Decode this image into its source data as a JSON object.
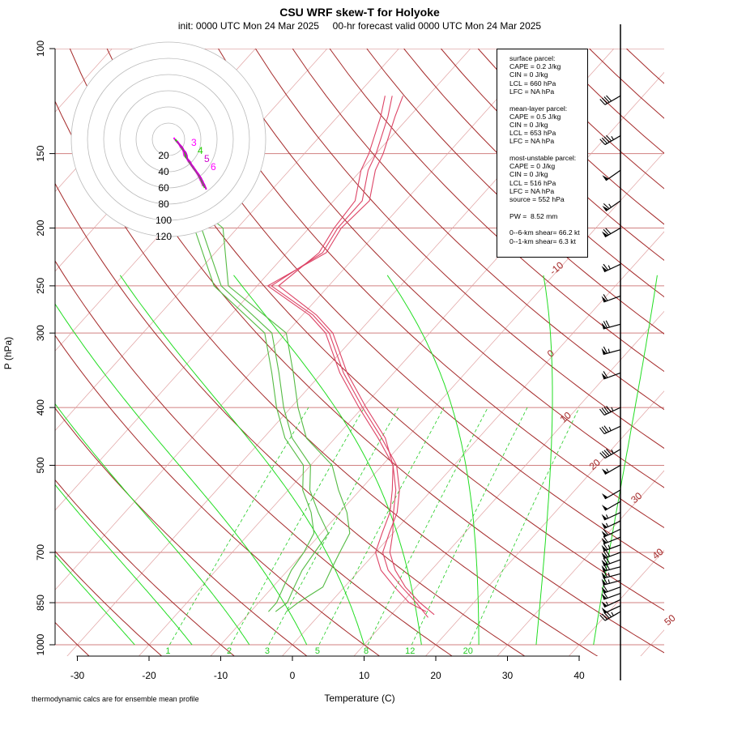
{
  "title": "CSU WRF skew-T for Holyoke",
  "subtitle": "init: 0000 UTC Mon 24 Mar 2025     00-hr forecast valid 0000 UTC Mon 24 Mar 2025",
  "footnote": "thermodynamic calcs are for ensemble mean profile",
  "info": {
    "surface": [
      "surface parcel:",
      "CAPE = 0.2 J/kg",
      "CIN = 0 J/kg",
      "LCL = 660 hPa",
      "LFC = NA hPa"
    ],
    "mean_layer": [
      "mean-layer parcel:",
      "CAPE = 0.5 J/kg",
      "CIN = 0 J/kg",
      "LCL = 653 hPa",
      "LFC = NA hPa"
    ],
    "most_unstable": [
      "most-unstable parcel:",
      "CAPE = 0 J/kg",
      "CIN = 0 J/kg",
      "LCL = 516 hPa",
      "LFC = NA hPa",
      "source = 552 hPa"
    ],
    "pw": "PW =  8.52 mm",
    "shear": [
      "0--6-km shear= 66.2 kt",
      "0--1-km shear= 6.3 kt"
    ]
  },
  "colors": {
    "isotherm": "#8b1a1a",
    "dry_adiabat": "#a52a2a",
    "moist_adiabat": "#22dd22",
    "mixing_ratio": "#22cc22",
    "isobar": "#d08080",
    "temperature": "#dd4466",
    "dewpoint": "#55bb44",
    "hodograph": [
      "#ff00ff",
      "#22cc00",
      "#cc00cc",
      "#00cccc",
      "#8b0000"
    ]
  },
  "chart_data": {
    "type": "line",
    "xlabel": "Temperature (C)",
    "ylabel": "P (hPa)",
    "xlim": [
      -33,
      52
    ],
    "ylim_hPa": [
      1000,
      100
    ],
    "log_pressure": true,
    "x_ticks": [
      -30,
      -20,
      -10,
      0,
      10,
      20,
      30,
      40
    ],
    "y_ticks": [
      100,
      150,
      200,
      250,
      300,
      400,
      500,
      700,
      850,
      1000
    ],
    "isobars": [
      100,
      150,
      200,
      250,
      300,
      400,
      500,
      700,
      850,
      1000
    ],
    "isotherm_labels": [
      {
        "t": -10,
        "p": 240,
        "text": "-10"
      },
      {
        "t": 0,
        "p": 330,
        "text": "0"
      },
      {
        "t": 10,
        "p": 425,
        "text": "10"
      },
      {
        "t": 20,
        "p": 510,
        "text": "20"
      },
      {
        "t": 30,
        "p": 580,
        "text": "30"
      },
      {
        "t": 40,
        "p": 720,
        "text": "40"
      },
      {
        "t": 50,
        "p": 930,
        "text": "50"
      }
    ],
    "mixing_ratio_labels": [
      "1",
      "2",
      "3",
      "5",
      "8",
      "12",
      "20"
    ],
    "mixing_ratio_values": [
      1,
      2,
      3,
      5,
      8,
      12,
      20
    ],
    "temperature_series": [
      {
        "name": "",
        "p": [
          900,
          850,
          800,
          750,
          700,
          650,
          600,
          550,
          500,
          450,
          400,
          350,
          300,
          280,
          250,
          220,
          200,
          180,
          160,
          150,
          130,
          120
        ],
        "t": [
          15.5,
          12,
          8,
          4,
          1,
          -0.5,
          -2,
          -4.5,
          -8,
          -13.5,
          -20,
          -27,
          -34,
          -38.5,
          -48,
          -45,
          -46,
          -46,
          -49,
          -50,
          -53,
          -55
        ]
      },
      {
        "name": "",
        "p": [
          890,
          850,
          800,
          750,
          700,
          650,
          600,
          550,
          500,
          450,
          400,
          350,
          300,
          280,
          250,
          220,
          200,
          180,
          160,
          150,
          130,
          120
        ],
        "t": [
          16,
          12.5,
          8.5,
          5,
          2,
          0,
          -2.5,
          -5,
          -8.5,
          -14,
          -20.5,
          -27.5,
          -34.5,
          -39,
          -48.5,
          -44.5,
          -45.5,
          -45,
          -48,
          -49,
          -52,
          -53.5
        ]
      },
      {
        "name": "",
        "p": [
          880,
          850,
          800,
          750,
          700,
          650,
          600,
          550,
          500,
          450,
          400,
          350,
          300,
          280,
          250,
          220,
          200,
          180,
          160,
          150,
          130,
          120
        ],
        "t": [
          14.5,
          11,
          7,
          3,
          0,
          -1.5,
          -3,
          -5.5,
          -8.5,
          -13,
          -19.5,
          -26.5,
          -33.5,
          -38,
          -47,
          -45.5,
          -46.5,
          -47,
          -50,
          -51,
          -54,
          -56
        ]
      }
    ],
    "dewpoint_series": [
      {
        "name": "",
        "p": [
          880,
          850,
          800,
          750,
          700,
          650,
          600,
          550,
          500,
          450,
          400,
          350,
          300,
          250,
          200,
          185
        ],
        "t": [
          -6.5,
          -6,
          -7,
          -8,
          -8.5,
          -9,
          -13,
          -17,
          -20,
          -26,
          -31,
          -36,
          -42,
          -55,
          -65,
          -75
        ]
      },
      {
        "name": "",
        "p": [
          880,
          850,
          800,
          750,
          700,
          650,
          600,
          550,
          500,
          450,
          400,
          350,
          300,
          250,
          200,
          180,
          165
        ],
        "t": [
          -5,
          -4.5,
          -3,
          -4,
          -5,
          -6,
          -9,
          -13,
          -17,
          -24,
          -29,
          -34,
          -40,
          -54,
          -62,
          -70,
          -74
        ]
      },
      {
        "name": "",
        "p": [
          880,
          850,
          800,
          750,
          700,
          650,
          600,
          550,
          500,
          450,
          400,
          350,
          300,
          250,
          200,
          180
        ],
        "t": [
          -7.5,
          -7.5,
          -8.5,
          -9.5,
          -10,
          -11,
          -14,
          -18,
          -21,
          -27,
          -32,
          -37,
          -43,
          -56,
          -66,
          -72
        ]
      }
    ],
    "hodograph": {
      "rings_kt": [
        20,
        40,
        60,
        80,
        100,
        120
      ],
      "ring_labels": [
        "20",
        "40",
        "60",
        "80",
        "100",
        "120"
      ],
      "point_labels": [
        "3",
        "4",
        "5",
        "6"
      ]
    },
    "wind_barbs": {
      "p": [
        880,
        860,
        840,
        820,
        800,
        780,
        760,
        740,
        720,
        700,
        680,
        660,
        640,
        620,
        600,
        575,
        550,
        500,
        470,
        430,
        400,
        350,
        320,
        290,
        260,
        230,
        200,
        180,
        160,
        140,
        120
      ],
      "spd": [
        45,
        50,
        55,
        60,
        60,
        65,
        65,
        70,
        70,
        70,
        65,
        60,
        60,
        55,
        55,
        50,
        50,
        55,
        45,
        35,
        45,
        60,
        65,
        70,
        60,
        65,
        70,
        65,
        50,
        45,
        40
      ],
      "dir": [
        240,
        245,
        245,
        250,
        250,
        255,
        255,
        255,
        250,
        250,
        250,
        248,
        245,
        245,
        245,
        240,
        240,
        240,
        240,
        245,
        245,
        250,
        255,
        255,
        250,
        245,
        240,
        235,
        235,
        240,
        240
      ]
    }
  }
}
